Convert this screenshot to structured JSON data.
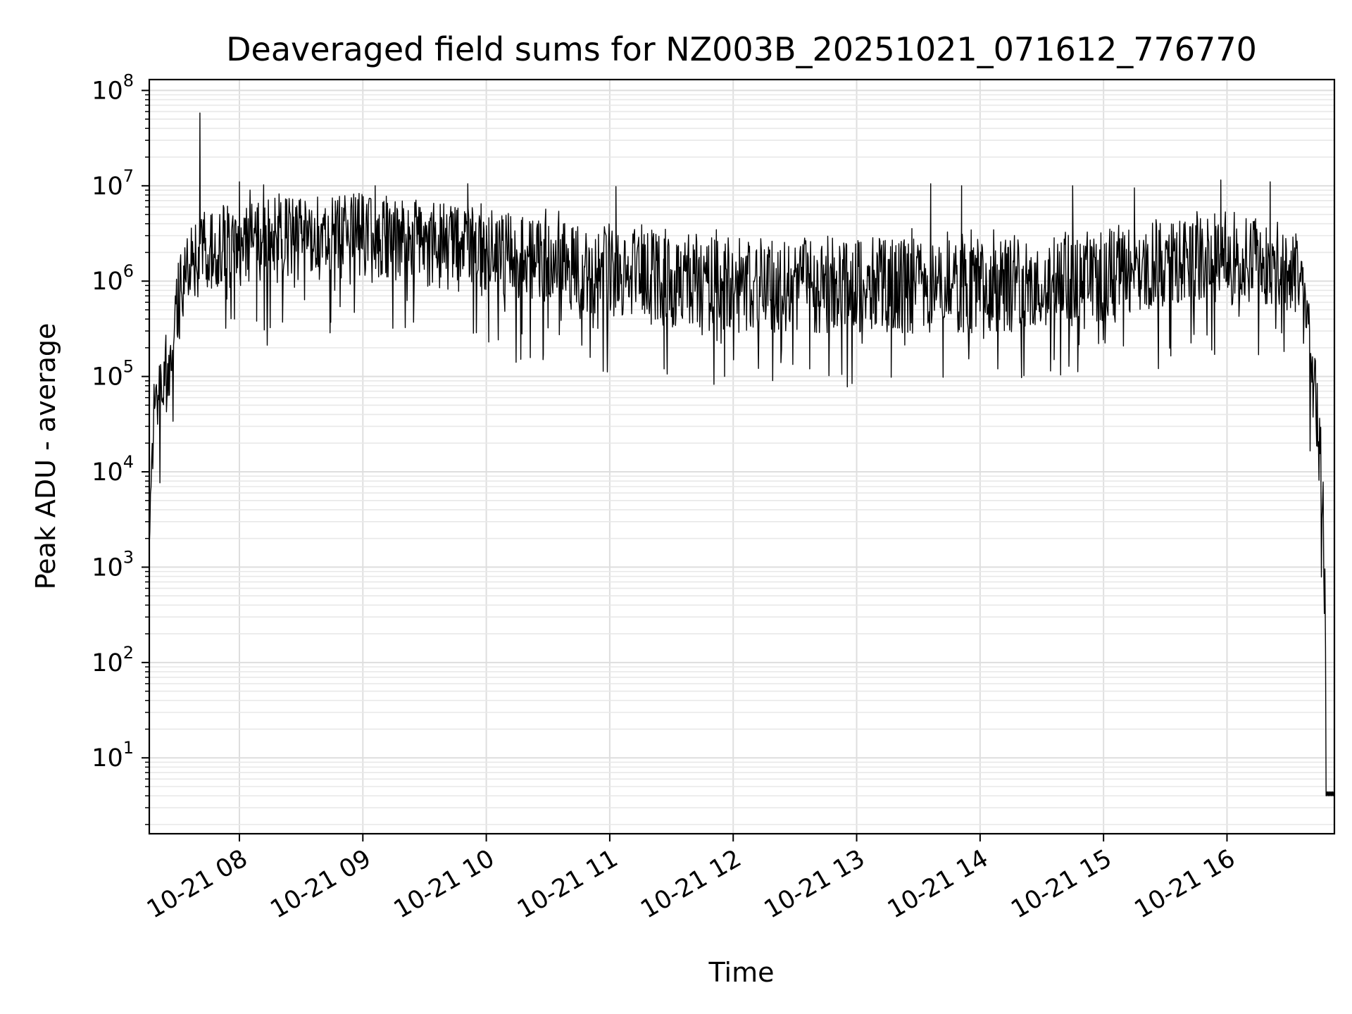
{
  "chart_data": {
    "type": "line",
    "title": "Deaveraged field sums for NZ003B_20251021_071612_776770",
    "xlabel": "Time",
    "ylabel": "Peak ADU - average",
    "yscale": "log",
    "ylim": [
      1.6,
      130000000
    ],
    "xlim_hours": [
      7.27,
      16.87
    ],
    "grid": true,
    "x_ticks": [
      {
        "label": "10-21 08",
        "hour": 8
      },
      {
        "label": "10-21 09",
        "hour": 9
      },
      {
        "label": "10-21 10",
        "hour": 10
      },
      {
        "label": "10-21 11",
        "hour": 11
      },
      {
        "label": "10-21 12",
        "hour": 12
      },
      {
        "label": "10-21 13",
        "hour": 13
      },
      {
        "label": "10-21 14",
        "hour": 14
      },
      {
        "label": "10-21 15",
        "hour": 15
      },
      {
        "label": "10-21 16",
        "hour": 16
      }
    ],
    "y_ticks": [
      {
        "base": "10",
        "exp": "1",
        "value": 10
      },
      {
        "base": "10",
        "exp": "2",
        "value": 100
      },
      {
        "base": "10",
        "exp": "3",
        "value": 1000
      },
      {
        "base": "10",
        "exp": "4",
        "value": 10000
      },
      {
        "base": "10",
        "exp": "5",
        "value": 100000
      },
      {
        "base": "10",
        "exp": "6",
        "value": 1000000
      },
      {
        "base": "10",
        "exp": "7",
        "value": 10000000
      },
      {
        "base": "10",
        "exp": "8",
        "value": 100000000
      }
    ],
    "series": [
      {
        "name": "field sums",
        "color": "#000000",
        "profile_hours": [
          7.27,
          7.29,
          7.31,
          7.35,
          7.4,
          7.45,
          7.5,
          7.55,
          7.6,
          7.7,
          8.0,
          9.0,
          10.0,
          11.0,
          12.0,
          13.0,
          14.0,
          15.0,
          15.5,
          16.0,
          16.3,
          16.55,
          16.6,
          16.65,
          16.7,
          16.75,
          16.78,
          16.8,
          16.82,
          16.84,
          16.87
        ],
        "profile_values": [
          1500,
          20000,
          40000,
          70000,
          100000,
          200000,
          500000,
          1200000,
          1500000,
          2000000,
          2500000,
          3000000,
          2000000,
          1200000,
          900000,
          900000,
          900000,
          1100000,
          1500000,
          2000000,
          1500000,
          1200000,
          900000,
          300000,
          80000,
          20000,
          3000,
          150,
          4,
          4,
          4
        ],
        "spikes": [
          {
            "hour": 7.68,
            "value": 58000000
          },
          {
            "hour": 8.0,
            "value": 11000000
          },
          {
            "hour": 9.1,
            "value": 10000000
          },
          {
            "hour": 9.85,
            "value": 10500000
          },
          {
            "hour": 11.05,
            "value": 9800000
          },
          {
            "hour": 13.6,
            "value": 10500000
          },
          {
            "hour": 13.85,
            "value": 10000000
          },
          {
            "hour": 14.75,
            "value": 10000000
          },
          {
            "hour": 15.25,
            "value": 9500000
          },
          {
            "hour": 15.95,
            "value": 11500000
          },
          {
            "hour": 16.35,
            "value": 11000000
          }
        ],
        "dips": [
          {
            "hour": 7.96,
            "value": 400000
          },
          {
            "hour": 8.14,
            "value": 380000
          },
          {
            "hour": 8.74,
            "value": 370000
          },
          {
            "hour": 10.02,
            "value": 230000
          },
          {
            "hour": 10.46,
            "value": 150000
          },
          {
            "hour": 11.44,
            "value": 120000
          },
          {
            "hour": 11.93,
            "value": 100000
          },
          {
            "hour": 12.62,
            "value": 120000
          },
          {
            "hour": 12.88,
            "value": 105000
          },
          {
            "hour": 13.28,
            "value": 98000
          },
          {
            "hour": 13.7,
            "value": 98000
          },
          {
            "hour": 14.6,
            "value": 150000
          },
          {
            "hour": 15.9,
            "value": 170000
          }
        ]
      }
    ]
  }
}
